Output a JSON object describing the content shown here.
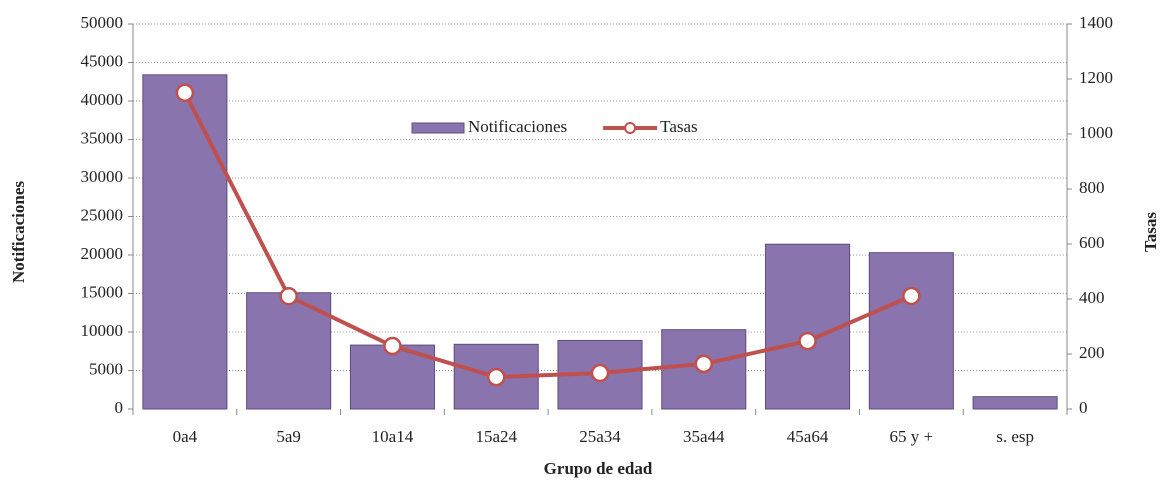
{
  "chart_data": {
    "type": "bar",
    "x_label": "Grupo de edad",
    "y_label": "Notificaciones",
    "y2_label": "Tasas",
    "categories": [
      "0a4",
      "5a9",
      "10a14",
      "15a24",
      "25a34",
      "35a44",
      "45a64",
      "65 y +",
      "s. esp"
    ],
    "series": [
      {
        "name": "Notificaciones",
        "type": "bar",
        "color": "#8a74ad",
        "values": [
          43400,
          15100,
          8300,
          8400,
          8900,
          10300,
          21400,
          20300,
          1600
        ]
      },
      {
        "name": "Tasas",
        "type": "line",
        "axis": "y2",
        "color": "#c0504d",
        "values": [
          1150,
          410,
          229,
          116,
          131,
          164,
          247,
          411,
          null
        ]
      }
    ],
    "ylim": [
      0,
      50000
    ],
    "yticks": [
      0,
      5000,
      10000,
      15000,
      20000,
      25000,
      30000,
      35000,
      40000,
      45000,
      50000
    ],
    "y2lim": [
      0,
      1400
    ],
    "y2ticks": [
      0,
      200,
      400,
      600,
      800,
      1000,
      1200,
      1400
    ],
    "grid": true,
    "legend": "top"
  }
}
